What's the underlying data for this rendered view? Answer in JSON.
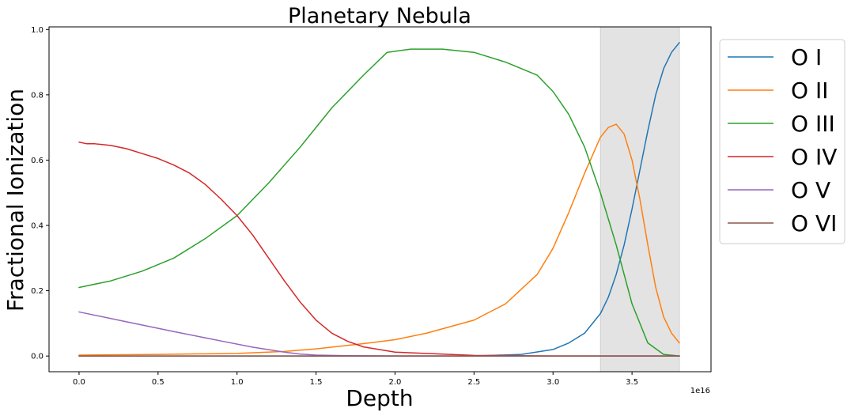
{
  "chart_data": {
    "type": "line",
    "title": "Planetary Nebula",
    "xlabel": "Depth",
    "ylabel": "Fractional Ionization",
    "x_offset_label": "1e16",
    "xlim": [
      -0.19,
      4.0
    ],
    "ylim": [
      -0.048,
      1.008
    ],
    "x_ticks": [
      0.0,
      0.5,
      1.0,
      1.5,
      2.0,
      2.5,
      3.0,
      3.5
    ],
    "x_tick_labels": [
      "0.0",
      "0.5",
      "1.0",
      "1.5",
      "2.0",
      "2.5",
      "3.0",
      "3.5"
    ],
    "y_ticks": [
      0.0,
      0.2,
      0.4,
      0.6,
      0.8,
      1.0
    ],
    "y_tick_labels": [
      "0.0",
      "0.2",
      "0.4",
      "0.6",
      "0.8",
      "1.0"
    ],
    "shaded_region": {
      "x": [
        3.3,
        3.8
      ],
      "color": "#e3e3e3"
    },
    "grid": false,
    "legend_position": "outside-right",
    "series": [
      {
        "name": "O I",
        "color": "#1f77b4",
        "x": [
          0,
          0.5,
          1.0,
          1.5,
          2.0,
          2.5,
          2.8,
          3.0,
          3.1,
          3.2,
          3.3,
          3.35,
          3.4,
          3.45,
          3.5,
          3.55,
          3.6,
          3.65,
          3.7,
          3.75,
          3.8
        ],
        "y": [
          0.0,
          0.0,
          0.0,
          0.0,
          0.0,
          0.0,
          0.005,
          0.02,
          0.04,
          0.07,
          0.13,
          0.18,
          0.25,
          0.34,
          0.45,
          0.57,
          0.69,
          0.8,
          0.88,
          0.93,
          0.96
        ]
      },
      {
        "name": "O II",
        "color": "#ff7f0e",
        "x": [
          0,
          0.5,
          1.0,
          1.3,
          1.5,
          1.8,
          2.0,
          2.2,
          2.5,
          2.7,
          2.9,
          3.0,
          3.1,
          3.2,
          3.3,
          3.35,
          3.4,
          3.45,
          3.5,
          3.55,
          3.6,
          3.65,
          3.7,
          3.75,
          3.8
        ],
        "y": [
          0.003,
          0.005,
          0.008,
          0.014,
          0.022,
          0.038,
          0.05,
          0.07,
          0.11,
          0.16,
          0.25,
          0.33,
          0.44,
          0.56,
          0.67,
          0.7,
          0.71,
          0.68,
          0.6,
          0.48,
          0.34,
          0.21,
          0.12,
          0.07,
          0.04
        ]
      },
      {
        "name": "O III",
        "color": "#2ca02c",
        "x": [
          0,
          0.05,
          0.2,
          0.4,
          0.6,
          0.8,
          1.0,
          1.2,
          1.4,
          1.6,
          1.8,
          1.95,
          2.1,
          2.3,
          2.5,
          2.7,
          2.9,
          3.0,
          3.1,
          3.2,
          3.3,
          3.4,
          3.5,
          3.6,
          3.7,
          3.8
        ],
        "y": [
          0.21,
          0.215,
          0.23,
          0.26,
          0.3,
          0.36,
          0.43,
          0.53,
          0.64,
          0.76,
          0.86,
          0.93,
          0.94,
          0.94,
          0.93,
          0.9,
          0.86,
          0.81,
          0.74,
          0.64,
          0.5,
          0.34,
          0.16,
          0.04,
          0.005,
          0.0
        ]
      },
      {
        "name": "O IV",
        "color": "#d62728",
        "x": [
          0,
          0.05,
          0.1,
          0.2,
          0.3,
          0.4,
          0.5,
          0.6,
          0.7,
          0.8,
          0.9,
          1.0,
          1.1,
          1.2,
          1.3,
          1.4,
          1.5,
          1.6,
          1.7,
          1.8,
          2.0,
          2.5,
          3.0,
          3.8
        ],
        "y": [
          0.655,
          0.65,
          0.65,
          0.645,
          0.635,
          0.62,
          0.605,
          0.585,
          0.56,
          0.525,
          0.48,
          0.43,
          0.37,
          0.3,
          0.23,
          0.165,
          0.11,
          0.07,
          0.045,
          0.028,
          0.012,
          0.002,
          0.0,
          0.0
        ]
      },
      {
        "name": "O V",
        "color": "#9467bd",
        "x": [
          0,
          0.3,
          0.6,
          0.9,
          1.1,
          1.3,
          1.4,
          1.5,
          1.7,
          2.0,
          3.0,
          3.8
        ],
        "y": [
          0.135,
          0.105,
          0.075,
          0.046,
          0.027,
          0.012,
          0.006,
          0.003,
          0.001,
          0.0,
          0.0,
          0.0
        ]
      },
      {
        "name": "O VI",
        "color": "#8c564b",
        "x": [
          0,
          1.0,
          2.0,
          3.0,
          3.8
        ],
        "y": [
          0.0,
          0.0,
          0.0,
          0.0,
          0.0
        ]
      }
    ]
  }
}
